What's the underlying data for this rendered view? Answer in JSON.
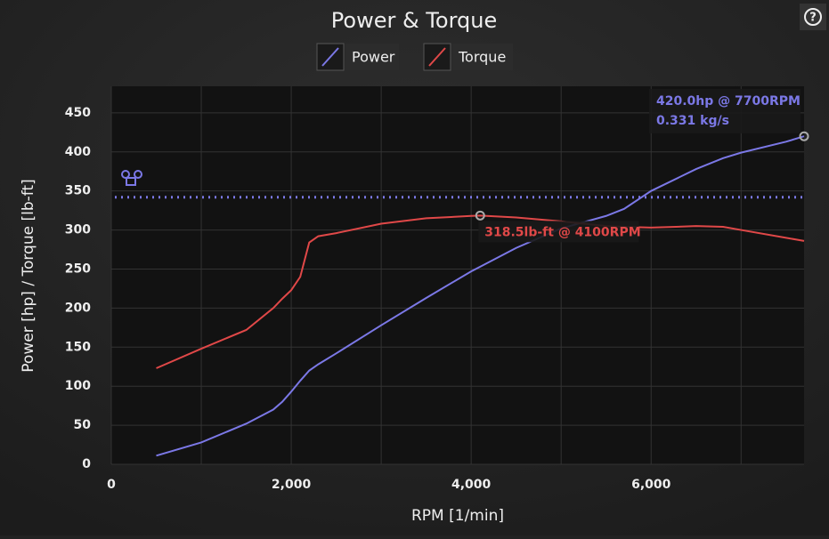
{
  "chart_data": {
    "type": "line",
    "title": "Power & Torque",
    "xlabel": "RPM [1/min]",
    "ylabel": "Power [hp] / Torque [lb-ft]",
    "x": [
      500,
      1000,
      1500,
      1800,
      1900,
      2000,
      2100,
      2200,
      2300,
      2500,
      3000,
      3500,
      4000,
      4100,
      4500,
      5000,
      5500,
      5700,
      6000,
      6500,
      6800,
      7000,
      7500,
      7700
    ],
    "series": [
      {
        "name": "Power",
        "color": "#7b78e6",
        "values": [
          11,
          28,
          52,
          70,
          80,
          93,
          107,
          120,
          128,
          142,
          178,
          213,
          247,
          253,
          277,
          302,
          318,
          327,
          350,
          378,
          392,
          399,
          413,
          420
        ]
      },
      {
        "name": "Torque",
        "color": "#e04848",
        "values": [
          123,
          148,
          172,
          200,
          212,
          223,
          240,
          284,
          292,
          296,
          308,
          315,
          318,
          318.5,
          316,
          311,
          305,
          304,
          303,
          305,
          304,
          300,
          290,
          286
        ]
      }
    ],
    "xlim": [
      0,
      7700
    ],
    "ylim": [
      0,
      484
    ],
    "xticks": [
      0,
      {
        "value": 2000,
        "label": "2,000"
      },
      {
        "value": 4000,
        "label": "4,000"
      },
      {
        "value": 6000,
        "label": "6,000"
      }
    ],
    "x_minor_grid": [
      1000,
      3000,
      5000,
      7000
    ],
    "yticks": [
      0,
      50,
      100,
      150,
      200,
      250,
      300,
      350,
      400,
      450
    ],
    "grid": true,
    "limit_line": 342,
    "limit_color": "#7b78e6",
    "annotations": [
      {
        "text": "420.0hp @ 7700RPM",
        "text2": "0.331 kg/s",
        "series": 0,
        "point": 23
      },
      {
        "text": "318.5lb-ft @ 4100RPM",
        "series": 1,
        "point": 13
      }
    ]
  },
  "help": "?"
}
